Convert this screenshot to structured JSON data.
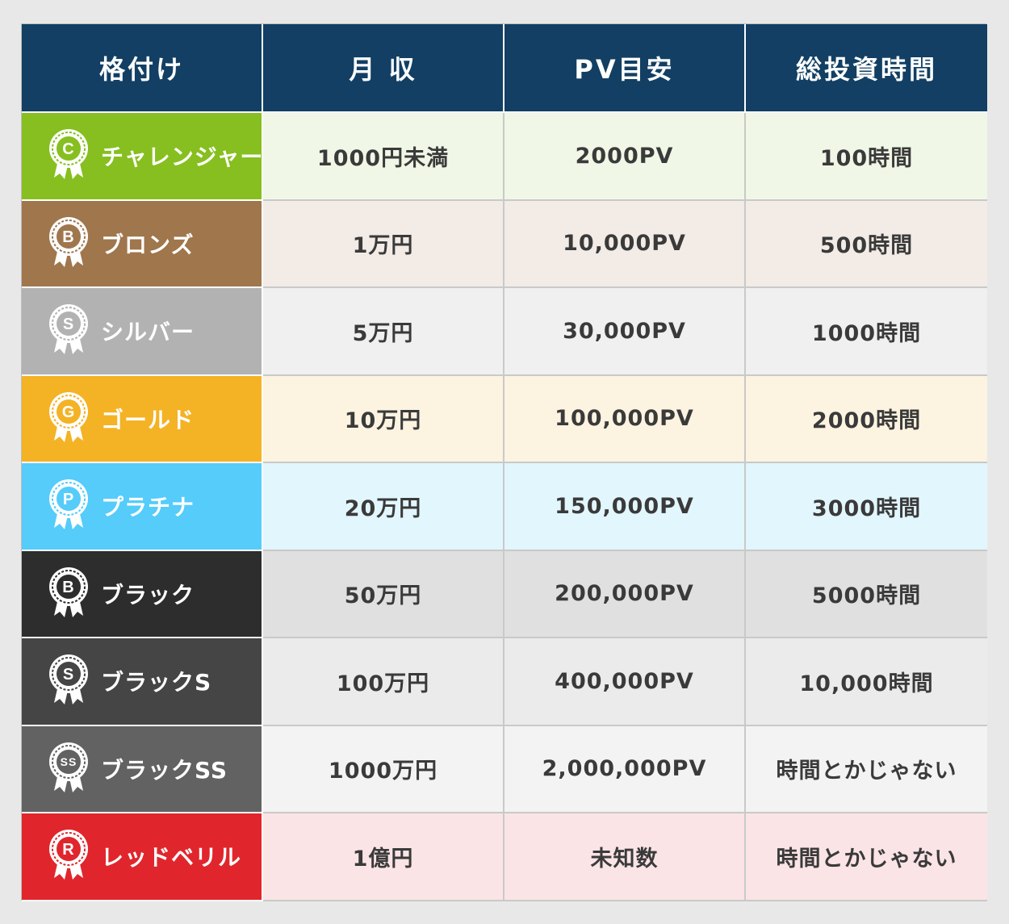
{
  "headers": [
    "格付け",
    "月 収",
    "PV目安",
    "総投資時間"
  ],
  "rows": [
    {
      "rank": "チャレンジャー",
      "letter": "C",
      "income": "1000円未満",
      "pv": "2000PV",
      "hours": "100時間",
      "rank_color": "#86bf1f",
      "row_color": "#f0f7e6"
    },
    {
      "rank": "ブロンズ",
      "letter": "B",
      "income": "1万円",
      "pv": "10,000PV",
      "hours": "500時間",
      "rank_color": "#a0764d",
      "row_color": "#f2ebe6"
    },
    {
      "rank": "シルバー",
      "letter": "S",
      "income": "5万円",
      "pv": "30,000PV",
      "hours": "1000時間",
      "rank_color": "#b2b2b2",
      "row_color": "#f0f0f0"
    },
    {
      "rank": "ゴールド",
      "letter": "G",
      "income": "10万円",
      "pv": "100,000PV",
      "hours": "2000時間",
      "rank_color": "#f4b225",
      "row_color": "#fcf3e0"
    },
    {
      "rank": "プラチナ",
      "letter": "P",
      "income": "20万円",
      "pv": "150,000PV",
      "hours": "3000時間",
      "rank_color": "#55ccfa",
      "row_color": "#e2f6fd"
    },
    {
      "rank": "ブラック",
      "letter": "B",
      "income": "50万円",
      "pv": "200,000PV",
      "hours": "5000時間",
      "rank_color": "#2d2d2d",
      "row_color": "#e0e0e0"
    },
    {
      "rank": "ブラックS",
      "letter": "S",
      "income": "100万円",
      "pv": "400,000PV",
      "hours": "10,000時間",
      "rank_color": "#454545",
      "row_color": "#ebebeb"
    },
    {
      "rank": "ブラックSS",
      "letter": "SS",
      "income": "1000万円",
      "pv": "2,000,000PV",
      "hours": "時間とかじゃない",
      "rank_color": "#626262",
      "row_color": "#f3f3f3"
    },
    {
      "rank": "レッドベリル",
      "letter": "R",
      "income": "1億円",
      "pv": "未知数",
      "hours": "時間とかじゃない",
      "rank_color": "#e0262c",
      "row_color": "#fbe4e6"
    }
  ],
  "icon": "ribbon-badge-icon"
}
